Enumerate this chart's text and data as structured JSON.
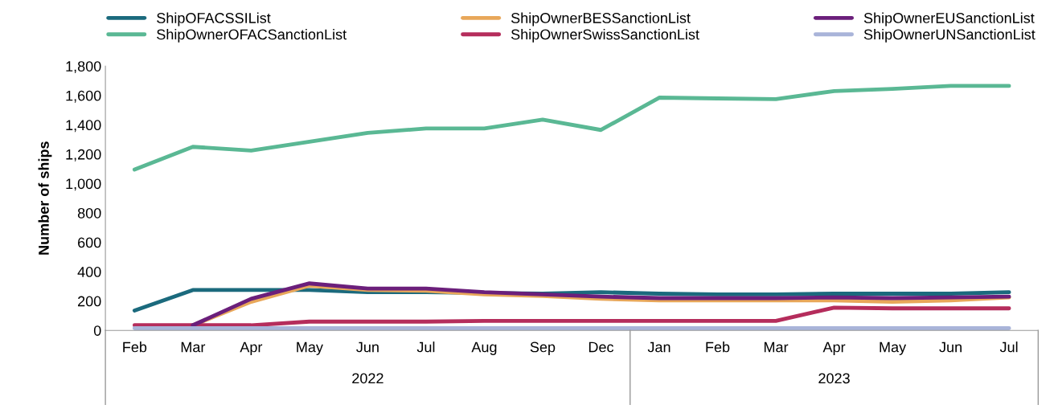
{
  "chart_data": {
    "type": "line",
    "ylabel": "Number of ships",
    "categories": [
      "Feb",
      "Mar",
      "Apr",
      "May",
      "Jun",
      "Jul",
      "Aug",
      "Sep",
      "Dec",
      "Jan",
      "Feb",
      "Mar",
      "Apr",
      "May",
      "Jun",
      "Jul"
    ],
    "series": [
      {
        "name": "ShipOFACSSIList",
        "color": "#1b6a7d",
        "values": [
          135,
          275,
          275,
          275,
          260,
          260,
          255,
          250,
          260,
          250,
          245,
          245,
          250,
          250,
          250,
          260
        ]
      },
      {
        "name": "ShipOwnerOFACSanctionList",
        "color": "#5ab894",
        "values": [
          1095,
          1250,
          1225,
          1285,
          1345,
          1375,
          1375,
          1435,
          1365,
          1585,
          1580,
          1575,
          1630,
          1645,
          1665,
          1665
        ]
      },
      {
        "name": "ShipOwnerBESSanctionList",
        "color": "#e8a75a",
        "values": [
          null,
          35,
          195,
          305,
          275,
          270,
          245,
          235,
          215,
          205,
          205,
          205,
          205,
          195,
          205,
          225
        ]
      },
      {
        "name": "ShipOwnerSwissSanctionList",
        "color": "#b52d5c",
        "values": [
          35,
          35,
          35,
          60,
          60,
          60,
          65,
          65,
          65,
          65,
          65,
          65,
          155,
          150,
          150,
          150
        ]
      },
      {
        "name": "ShipOwnerEUSanctionList",
        "color": "#6b1f7b",
        "values": [
          null,
          35,
          215,
          320,
          285,
          285,
          260,
          245,
          230,
          220,
          220,
          220,
          225,
          220,
          225,
          230
        ]
      },
      {
        "name": "ShipOwnerUNSanctionList",
        "color": "#a9b4d9",
        "values": [
          15,
          15,
          15,
          15,
          15,
          15,
          15,
          15,
          15,
          15,
          15,
          15,
          15,
          15,
          15,
          15
        ]
      }
    ],
    "ylim": [
      0,
      1800
    ],
    "yticks": [
      0,
      {
        "value": 200,
        "label": "200"
      },
      {
        "value": 400,
        "label": "400"
      },
      {
        "value": 600,
        "label": "600"
      },
      {
        "value": 800,
        "label": "800"
      },
      {
        "value": 1000,
        "label": "1,000"
      },
      {
        "value": 1200,
        "label": "1,200"
      },
      {
        "value": 1400,
        "label": "1,400"
      },
      {
        "value": 1600,
        "label": "1,600"
      },
      {
        "value": 1800,
        "label": "1,800"
      }
    ],
    "annotations": [
      "2022",
      "2023"
    ],
    "legend": "top",
    "grid": false,
    "marker": "none",
    "line_style": "solid"
  }
}
